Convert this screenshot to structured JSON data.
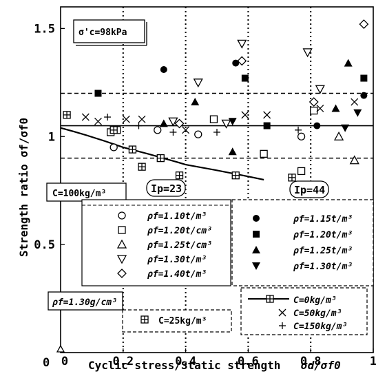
{
  "chart_data": {
    "type": "scatter",
    "xlabel": "Cyclic stress/Static strength",
    "xlabel_symbol": "σd/σf0",
    "ylabel": "Strength ratio σf/σf0",
    "xlim": [
      0,
      1
    ],
    "ylim": [
      0,
      1.6
    ],
    "x_ticks": [
      {
        "v": 0,
        "label": "0"
      },
      {
        "v": 0.2,
        "label": "0.2"
      },
      {
        "v": 0.4,
        "label": "0.4"
      },
      {
        "v": 0.6,
        "label": "0.6"
      },
      {
        "v": 0.8,
        "label": "0.8"
      },
      {
        "v": 1.0,
        "label": "1"
      }
    ],
    "y_ticks": [
      {
        "v": 0,
        "label": "0"
      },
      {
        "v": 0.5,
        "label": "0.5"
      },
      {
        "v": 1.0,
        "label": "1"
      },
      {
        "v": 1.5,
        "label": "1.5"
      }
    ],
    "origin_label_left": "0",
    "annotations": {
      "confining": "σ'c=98kPa",
      "cement_100": "C=100kg/m³",
      "ip23": "Ip=23",
      "ip44": "Ip=44",
      "rho_130": "ρf=1.30g/cm³",
      "c25": "C=25kg/m³"
    },
    "legend_ip23": [
      "ρf=1.10t/m³",
      "ρf=1.20t/cm³",
      "ρf=1.25t/cm³",
      "ρf=1.30t/m³",
      "ρf=1.40t/m³"
    ],
    "legend_ip44": [
      "ρf=1.15t/m³",
      "ρf=1.20t/m³",
      "ρf=1.25t/m³",
      "ρf=1.30t/m³"
    ],
    "legend_cement": [
      "C=0kg/m³",
      "C=50kg/m³",
      "C=150kg/m³"
    ],
    "reference_lines": {
      "solid_y": 1.05,
      "dashed_y": [
        1.2,
        0.9
      ],
      "dotted_x": [
        0.2,
        0.4,
        0.6,
        0.8
      ]
    },
    "curve": {
      "name": "C=0kg/m³",
      "x": [
        0,
        0.2,
        0.4,
        0.65
      ],
      "y": [
        1.04,
        0.95,
        0.87,
        0.8
      ]
    },
    "series": [
      {
        "marker": "circle-open",
        "points": [
          [
            0.17,
            0.95
          ],
          [
            0.31,
            1.03
          ],
          [
            0.44,
            1.01
          ],
          [
            0.77,
            1.0
          ]
        ]
      },
      {
        "marker": "square-open",
        "points": [
          [
            0.16,
            1.02
          ],
          [
            0.18,
            1.03
          ],
          [
            0.49,
            1.08
          ],
          [
            0.65,
            0.92
          ],
          [
            0.77,
            0.84
          ],
          [
            0.81,
            1.12
          ]
        ]
      },
      {
        "marker": "triangle-up-open",
        "points": [
          [
            0.89,
            1.0
          ],
          [
            0.94,
            0.89
          ]
        ]
      },
      {
        "marker": "triangle-down-open",
        "points": [
          [
            0.36,
            1.07
          ],
          [
            0.44,
            1.25
          ],
          [
            0.53,
            1.06
          ],
          [
            0.58,
            1.43
          ],
          [
            0.79,
            1.39
          ],
          [
            0.83,
            1.22
          ]
        ]
      },
      {
        "marker": "diamond-open",
        "points": [
          [
            0.38,
            1.06
          ],
          [
            0.58,
            1.35
          ],
          [
            0.81,
            1.16
          ],
          [
            0.97,
            1.52
          ]
        ]
      },
      {
        "marker": "circle-filled",
        "points": [
          [
            0.33,
            1.31
          ],
          [
            0.56,
            1.34
          ],
          [
            0.82,
            1.05
          ],
          [
            0.97,
            1.19
          ]
        ]
      },
      {
        "marker": "square-filled",
        "points": [
          [
            0.12,
            1.2
          ],
          [
            0.59,
            1.27
          ],
          [
            0.66,
            1.05
          ],
          [
            0.97,
            1.27
          ]
        ]
      },
      {
        "marker": "triangle-up-filled",
        "points": [
          [
            0.33,
            1.06
          ],
          [
            0.43,
            1.16
          ],
          [
            0.55,
            0.93
          ],
          [
            0.88,
            1.13
          ],
          [
            0.92,
            1.34
          ]
        ]
      },
      {
        "marker": "triangle-down-filled",
        "points": [
          [
            0.55,
            1.07
          ],
          [
            0.91,
            1.04
          ],
          [
            0.95,
            1.11
          ]
        ]
      },
      {
        "marker": "square-cross",
        "points": [
          [
            0.02,
            1.1
          ],
          [
            0.17,
            1.03
          ],
          [
            0.23,
            0.94
          ],
          [
            0.26,
            0.86
          ],
          [
            0.32,
            0.9
          ],
          [
            0.38,
            0.82
          ],
          [
            0.56,
            0.82
          ],
          [
            0.74,
            0.81
          ]
        ]
      },
      {
        "marker": "x",
        "points": [
          [
            0.08,
            1.09
          ],
          [
            0.12,
            1.07
          ],
          [
            0.21,
            1.08
          ],
          [
            0.26,
            1.08
          ],
          [
            0.4,
            1.03
          ],
          [
            0.59,
            1.1
          ],
          [
            0.66,
            1.1
          ],
          [
            0.83,
            1.13
          ],
          [
            0.94,
            1.16
          ]
        ]
      },
      {
        "marker": "plus",
        "points": [
          [
            0.15,
            1.09
          ],
          [
            0.25,
            1.05
          ],
          [
            0.36,
            1.02
          ],
          [
            0.5,
            1.02
          ],
          [
            0.76,
            1.03
          ]
        ]
      }
    ]
  }
}
